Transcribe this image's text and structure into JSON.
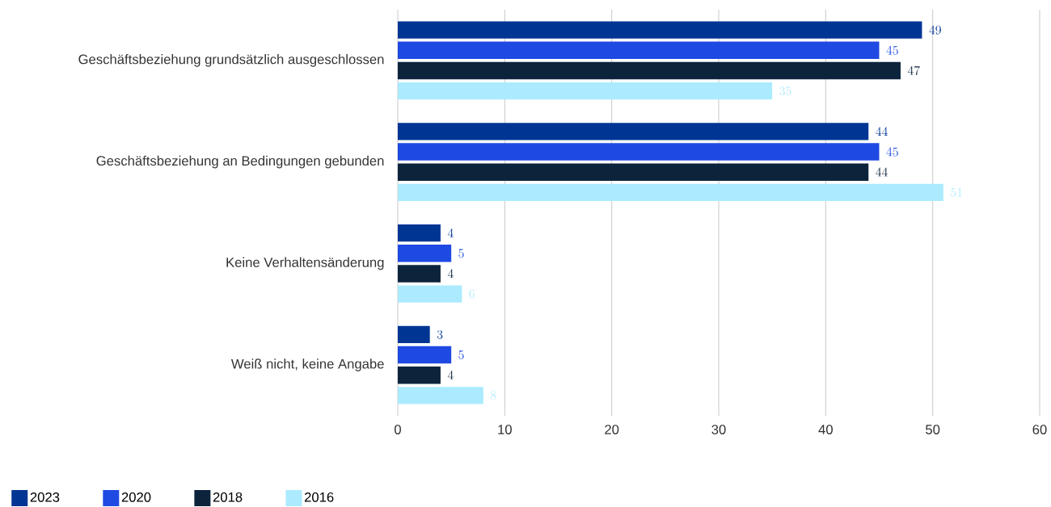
{
  "chart_data": {
    "type": "bar",
    "orientation": "horizontal",
    "categories": [
      "Geschäftsbeziehung grundsätzlich ausgeschlossen",
      "Geschäftsbeziehung an Bedingungen gebunden",
      "Keine Verhaltensänderung",
      "Weiß nicht, keine Angabe"
    ],
    "series": [
      {
        "name": "2023",
        "color": "#003594",
        "values": [
          49,
          44,
          4,
          3
        ]
      },
      {
        "name": "2020",
        "color": "#1e49e2",
        "values": [
          45,
          45,
          5,
          5
        ]
      },
      {
        "name": "2018",
        "color": "#0c233c",
        "values": [
          47,
          44,
          4,
          4
        ]
      },
      {
        "name": "2016",
        "color": "#acebff",
        "values": [
          35,
          51,
          6,
          8
        ]
      }
    ],
    "xlim": [
      0,
      60
    ],
    "xticks": [
      0,
      10,
      20,
      30,
      40,
      50,
      60
    ],
    "grid": "x",
    "legend": "bottom left",
    "data_labels": true
  }
}
